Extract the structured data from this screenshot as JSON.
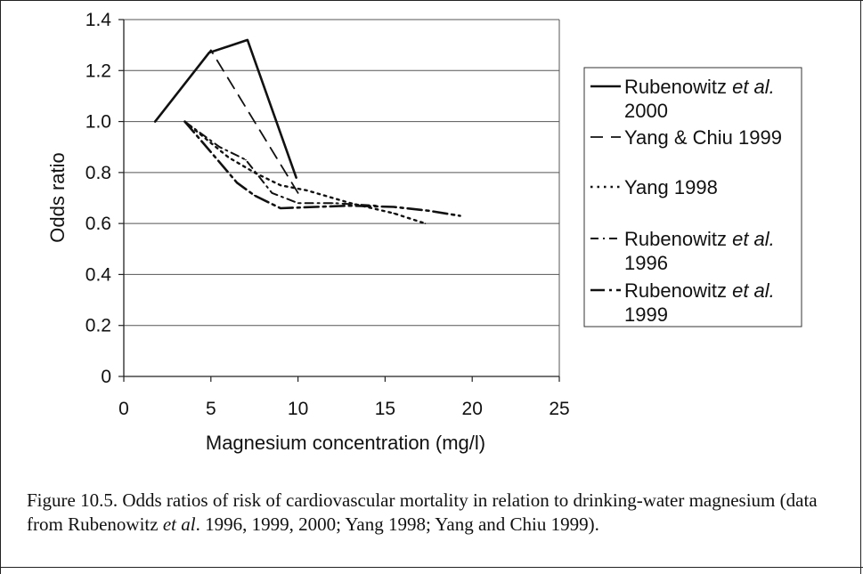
{
  "chart_data": {
    "type": "line",
    "title": "",
    "xlabel": "Magnesium concentration (mg/l)",
    "ylabel": "Odds ratio",
    "xlim": [
      0,
      25
    ],
    "ylim": [
      0,
      1.4
    ],
    "xticks": [
      0,
      5,
      10,
      15,
      20,
      25
    ],
    "yticks": [
      0,
      0.2,
      0.4,
      0.6,
      0.8,
      1.0,
      1.2,
      1.4
    ],
    "x_tick_labels": [
      "0",
      "5",
      "10",
      "15",
      "20",
      "25"
    ],
    "y_tick_labels": [
      "0",
      "0.2",
      "0.4",
      "0.6",
      "0.8",
      "1.0",
      "1.2",
      "1.4"
    ],
    "grid": "horizontal",
    "legend_position": "right",
    "series": [
      {
        "name_parts": [
          "Rubenowitz ",
          "et al.",
          "2000"
        ],
        "style": "solid",
        "x": [
          1.8,
          4.9,
          7.1,
          9.9
        ],
        "y": [
          1.0,
          1.27,
          1.32,
          0.78
        ]
      },
      {
        "name_parts": [
          "Yang & Chiu 1999"
        ],
        "style": "long-dash",
        "x": [
          1.8,
          5.0,
          10.0
        ],
        "y": [
          1.0,
          1.28,
          0.72
        ]
      },
      {
        "name_parts": [
          "Yang 1998"
        ],
        "style": "dotted",
        "x": [
          3.5,
          6.0,
          7.5,
          9.0,
          10.5,
          13.0,
          15.5,
          17.3
        ],
        "y": [
          1.0,
          0.86,
          0.8,
          0.75,
          0.73,
          0.68,
          0.64,
          0.6
        ]
      },
      {
        "name_parts": [
          "Rubenowitz ",
          "et al.",
          "1996"
        ],
        "style": "dash-dot",
        "x": [
          3.5,
          5.5,
          7.0,
          8.5,
          10.0,
          12.0,
          14.5
        ],
        "y": [
          1.0,
          0.9,
          0.85,
          0.72,
          0.68,
          0.68,
          0.67
        ]
      },
      {
        "name_parts": [
          "Rubenowitz ",
          "et al.",
          "1999"
        ],
        "style": "dash-dot-heavy",
        "x": [
          3.5,
          5.0,
          6.5,
          7.5,
          9.0,
          11.0,
          13.0,
          15.5,
          17.5,
          19.3
        ],
        "y": [
          1.0,
          0.88,
          0.76,
          0.71,
          0.66,
          0.665,
          0.67,
          0.665,
          0.65,
          0.63
        ]
      }
    ]
  },
  "caption": {
    "part1": "Figure 10.5. Odds ratios of risk of cardiovascular mortality in relation to drinking-water magnesium (data from Rubenowitz ",
    "italic": "et al",
    "part2": ". 1996, 1999, 2000; Yang 1998; Yang and Chiu 1999)."
  }
}
